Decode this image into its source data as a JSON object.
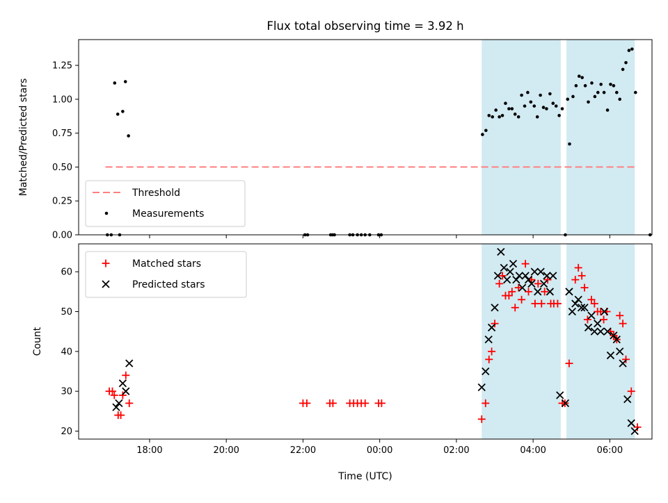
{
  "chart_data": [
    {
      "type": "scatter",
      "title": "Flux total observing time = 3.92 h",
      "ylabel": "Matched/Predicted stars",
      "xlabel": "",
      "x_unit": "hours since 17:00 UTC",
      "xlim": [
        -0.85,
        14.1
      ],
      "ylim": [
        0,
        1.44
      ],
      "yticks": [
        0.0,
        0.25,
        0.5,
        0.75,
        1.0,
        1.25
      ],
      "ytick_labels": [
        "0.00",
        "0.25",
        "0.50",
        "0.75",
        "1.00",
        "1.25"
      ],
      "legend_position": "lower-left",
      "shaded_intervals": [
        [
          9.66,
          11.72
        ],
        [
          11.87,
          13.65
        ]
      ],
      "shade_color": "#add8e6",
      "threshold": {
        "name": "Threshold",
        "y": 0.5,
        "x_range": [
          -0.15,
          13.65
        ],
        "color": "#ff7f7f",
        "style": "dashed"
      },
      "series": [
        {
          "name": "Measurements",
          "color": "#000000",
          "marker": "dot",
          "points": [
            [
              -0.1,
              0.0
            ],
            [
              0.0,
              0.0
            ],
            [
              0.09,
              1.12
            ],
            [
              0.17,
              0.89
            ],
            [
              0.22,
              0.0
            ],
            [
              0.3,
              0.91
            ],
            [
              0.37,
              1.13
            ],
            [
              0.45,
              0.73
            ],
            [
              5.05,
              0.0
            ],
            [
              5.12,
              0.0
            ],
            [
              5.72,
              0.0
            ],
            [
              5.77,
              0.0
            ],
            [
              5.82,
              0.0
            ],
            [
              6.22,
              0.0
            ],
            [
              6.3,
              0.0
            ],
            [
              6.42,
              0.0
            ],
            [
              6.52,
              0.0
            ],
            [
              6.62,
              0.0
            ],
            [
              6.74,
              0.0
            ],
            [
              6.97,
              0.0
            ],
            [
              7.04,
              0.0
            ],
            [
              9.68,
              0.74
            ],
            [
              9.77,
              0.77
            ],
            [
              9.85,
              0.88
            ],
            [
              9.94,
              0.87
            ],
            [
              10.03,
              0.92
            ],
            [
              10.12,
              0.87
            ],
            [
              10.2,
              0.88
            ],
            [
              10.28,
              0.97
            ],
            [
              10.37,
              0.93
            ],
            [
              10.45,
              0.93
            ],
            [
              10.53,
              0.89
            ],
            [
              10.62,
              0.87
            ],
            [
              10.7,
              1.03
            ],
            [
              10.78,
              0.95
            ],
            [
              10.86,
              1.05
            ],
            [
              10.94,
              0.98
            ],
            [
              11.03,
              0.95
            ],
            [
              11.11,
              0.87
            ],
            [
              11.19,
              1.03
            ],
            [
              11.27,
              0.94
            ],
            [
              11.35,
              0.93
            ],
            [
              11.44,
              1.04
            ],
            [
              11.52,
              0.97
            ],
            [
              11.6,
              0.95
            ],
            [
              11.68,
              0.88
            ],
            [
              11.76,
              0.93
            ],
            [
              11.84,
              0.0
            ],
            [
              11.9,
              1.0
            ],
            [
              11.95,
              0.67
            ],
            [
              12.04,
              1.02
            ],
            [
              12.12,
              1.1
            ],
            [
              12.2,
              1.17
            ],
            [
              12.28,
              1.16
            ],
            [
              12.36,
              1.1
            ],
            [
              12.44,
              0.98
            ],
            [
              12.53,
              1.12
            ],
            [
              12.61,
              1.02
            ],
            [
              12.69,
              1.05
            ],
            [
              12.77,
              1.11
            ],
            [
              12.85,
              1.05
            ],
            [
              12.94,
              0.92
            ],
            [
              13.02,
              1.11
            ],
            [
              13.1,
              1.1
            ],
            [
              13.18,
              1.05
            ],
            [
              13.26,
              1.0
            ],
            [
              13.34,
              1.22
            ],
            [
              13.42,
              1.27
            ],
            [
              13.5,
              1.36
            ],
            [
              13.58,
              1.37
            ],
            [
              13.67,
              1.05
            ],
            [
              14.05,
              0.0
            ]
          ]
        }
      ]
    },
    {
      "type": "scatter",
      "title": "",
      "ylabel": "Count",
      "xlabel": "Time (UTC)",
      "x_unit": "hours since 17:00 UTC",
      "xlim": [
        -0.85,
        14.1
      ],
      "ylim": [
        18,
        67
      ],
      "xticks": [
        1,
        3,
        5,
        7,
        9,
        11,
        13
      ],
      "xtick_labels": [
        "18:00",
        "20:00",
        "22:00",
        "00:00",
        "02:00",
        "04:00",
        "06:00"
      ],
      "yticks": [
        20,
        30,
        40,
        50,
        60
      ],
      "ytick_labels": [
        "20",
        "30",
        "40",
        "50",
        "60"
      ],
      "legend_position": "upper-left",
      "shaded_intervals": [
        [
          9.66,
          11.72
        ],
        [
          11.87,
          13.65
        ]
      ],
      "shade_color": "#add8e6",
      "series": [
        {
          "name": "Matched stars",
          "color": "#ff0000",
          "marker": "plus",
          "points": [
            [
              -0.05,
              30
            ],
            [
              0.03,
              30
            ],
            [
              0.08,
              29
            ],
            [
              0.18,
              24
            ],
            [
              0.25,
              24
            ],
            [
              0.3,
              29
            ],
            [
              0.38,
              34
            ],
            [
              0.47,
              27
            ],
            [
              5.0,
              27
            ],
            [
              5.1,
              27
            ],
            [
              5.7,
              27
            ],
            [
              5.78,
              27
            ],
            [
              6.22,
              27
            ],
            [
              6.32,
              27
            ],
            [
              6.42,
              27
            ],
            [
              6.52,
              27
            ],
            [
              6.62,
              27
            ],
            [
              6.97,
              27
            ],
            [
              7.05,
              27
            ],
            [
              9.66,
              23
            ],
            [
              9.76,
              27
            ],
            [
              9.85,
              38
            ],
            [
              9.92,
              40
            ],
            [
              10.0,
              47
            ],
            [
              10.12,
              57
            ],
            [
              10.2,
              59
            ],
            [
              10.28,
              54
            ],
            [
              10.37,
              54
            ],
            [
              10.45,
              55
            ],
            [
              10.53,
              51
            ],
            [
              10.62,
              56
            ],
            [
              10.7,
              53
            ],
            [
              10.8,
              62
            ],
            [
              10.88,
              55
            ],
            [
              10.96,
              58
            ],
            [
              11.05,
              52
            ],
            [
              11.13,
              57
            ],
            [
              11.22,
              52
            ],
            [
              11.3,
              55
            ],
            [
              11.38,
              58
            ],
            [
              11.46,
              52
            ],
            [
              11.54,
              52
            ],
            [
              11.64,
              52
            ],
            [
              11.76,
              27
            ],
            [
              11.83,
              27
            ],
            [
              11.94,
              37
            ],
            [
              12.1,
              58
            ],
            [
              12.18,
              61
            ],
            [
              12.27,
              59
            ],
            [
              12.34,
              56
            ],
            [
              12.42,
              48
            ],
            [
              12.52,
              53
            ],
            [
              12.6,
              52
            ],
            [
              12.68,
              50
            ],
            [
              12.76,
              50
            ],
            [
              12.84,
              48
            ],
            [
              12.92,
              50
            ],
            [
              13.02,
              45
            ],
            [
              13.1,
              44
            ],
            [
              13.18,
              43
            ],
            [
              13.26,
              49
            ],
            [
              13.34,
              47
            ],
            [
              13.42,
              38
            ],
            [
              13.56,
              30
            ],
            [
              13.72,
              21
            ]
          ]
        },
        {
          "name": "Predicted stars",
          "color": "#000000",
          "marker": "x",
          "points": [
            [
              0.13,
              26
            ],
            [
              0.2,
              27
            ],
            [
              0.3,
              32
            ],
            [
              0.38,
              30
            ],
            [
              0.47,
              37
            ],
            [
              9.66,
              31
            ],
            [
              9.76,
              35
            ],
            [
              9.84,
              43
            ],
            [
              9.92,
              46
            ],
            [
              10.0,
              51
            ],
            [
              10.08,
              59
            ],
            [
              10.16,
              65
            ],
            [
              10.24,
              61
            ],
            [
              10.32,
              58
            ],
            [
              10.4,
              60
            ],
            [
              10.48,
              62
            ],
            [
              10.56,
              58
            ],
            [
              10.64,
              59
            ],
            [
              10.72,
              56
            ],
            [
              10.8,
              59
            ],
            [
              10.88,
              58
            ],
            [
              10.96,
              57
            ],
            [
              11.04,
              60
            ],
            [
              11.12,
              55
            ],
            [
              11.2,
              60
            ],
            [
              11.28,
              57
            ],
            [
              11.36,
              59
            ],
            [
              11.44,
              55
            ],
            [
              11.52,
              59
            ],
            [
              11.7,
              29
            ],
            [
              11.84,
              27
            ],
            [
              11.94,
              55
            ],
            [
              12.02,
              50
            ],
            [
              12.1,
              52
            ],
            [
              12.18,
              53
            ],
            [
              12.26,
              51
            ],
            [
              12.34,
              51
            ],
            [
              12.44,
              46
            ],
            [
              12.52,
              49
            ],
            [
              12.6,
              45
            ],
            [
              12.68,
              47
            ],
            [
              12.76,
              45
            ],
            [
              12.86,
              50
            ],
            [
              12.94,
              45
            ],
            [
              13.02,
              39
            ],
            [
              13.1,
              44
            ],
            [
              13.18,
              43
            ],
            [
              13.26,
              40
            ],
            [
              13.34,
              37
            ],
            [
              13.46,
              28
            ],
            [
              13.56,
              22
            ],
            [
              13.65,
              20
            ]
          ]
        }
      ]
    }
  ]
}
